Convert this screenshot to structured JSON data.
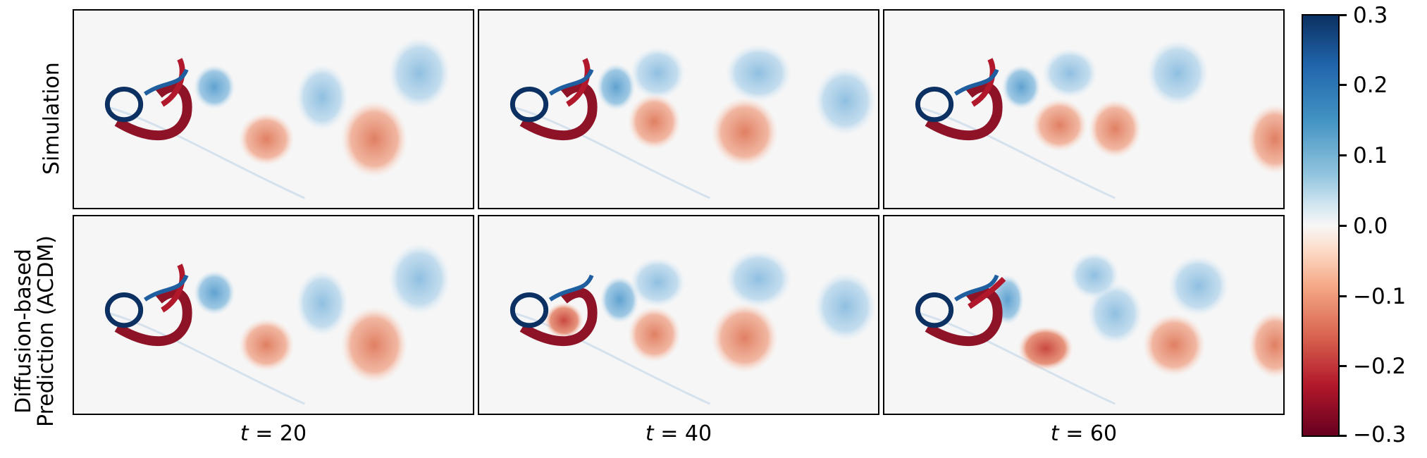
{
  "row_labels": {
    "simulation": "Simulation",
    "prediction_line1": "Diffusion-based",
    "prediction_line2": "Prediction (ACDM)"
  },
  "columns": [
    {
      "var": "t",
      "value": " = 20"
    },
    {
      "var": "t",
      "value": " = 40"
    },
    {
      "var": "t",
      "value": " = 60"
    }
  ],
  "colorbar": {
    "ticks": [
      "0.3",
      "0.2",
      "0.1",
      "0.0",
      "−0.1",
      "−0.2",
      "−0.3"
    ],
    "range": [
      -0.3,
      0.3
    ],
    "colormap": "RdBu"
  }
}
